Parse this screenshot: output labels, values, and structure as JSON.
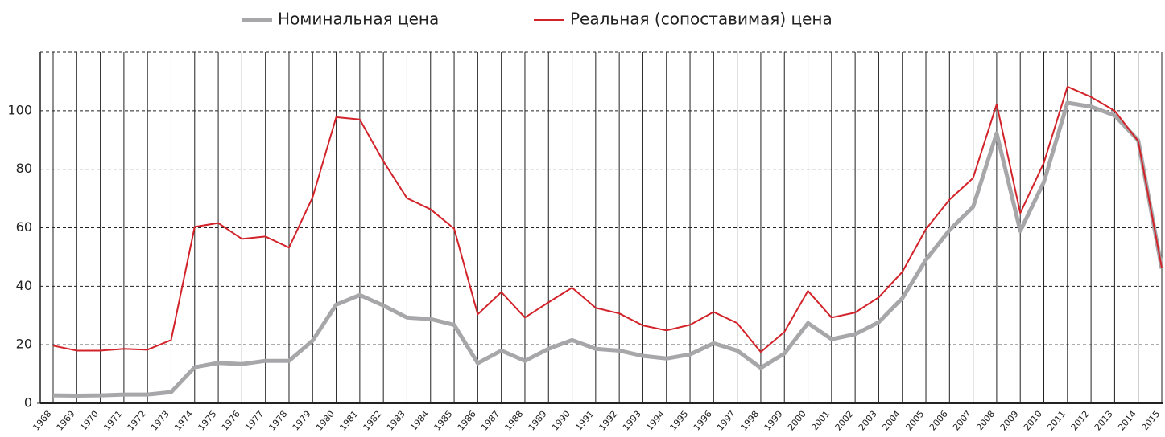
{
  "chart_data": {
    "type": "line",
    "categories": [
      "1968",
      "1969",
      "1970",
      "1971",
      "1972",
      "1973",
      "1974",
      "1975",
      "1976",
      "1977",
      "1978",
      "1979",
      "1980",
      "1981",
      "1982",
      "1983",
      "1984",
      "1985",
      "1986",
      "1987",
      "1988",
      "1989",
      "1990",
      "1991",
      "1992",
      "1993",
      "1994",
      "1995",
      "1996",
      "1997",
      "1998",
      "1999",
      "2000",
      "2001",
      "2002",
      "2003",
      "2004",
      "2005",
      "2006",
      "2007",
      "2008",
      "2009",
      "2010",
      "2011",
      "2012",
      "2013",
      "2014",
      "2015"
    ],
    "series": [
      {
        "name": "Номинальная цена",
        "color": "#a7a7aa",
        "values": [
          2.7,
          2.6,
          2.7,
          3,
          3,
          3.8,
          12.3,
          13.8,
          13.4,
          14.5,
          14.5,
          21.4,
          33.7,
          37,
          33.4,
          29.3,
          28.8,
          26.8,
          13.7,
          18,
          14.5,
          18.6,
          21.6,
          18.6,
          18,
          16.2,
          15.3,
          16.7,
          20.5,
          18,
          12.1,
          17,
          27.4,
          21.9,
          23.6,
          27.7,
          35.9,
          49,
          59.2,
          67.1,
          92.3,
          58.9,
          75.6,
          102.7,
          101.4,
          98.4,
          89.9,
          46
        ]
      },
      {
        "name": "Реальная (сопоставимая) цена",
        "color": "#d2232a",
        "values": [
          19.7,
          18,
          18,
          18.6,
          18.3,
          21.6,
          60.3,
          61.6,
          56.2,
          57,
          53.2,
          70.4,
          97.8,
          97,
          82.7,
          70.1,
          66.3,
          59.7,
          30.4,
          38,
          29.3,
          34.5,
          39.5,
          32.6,
          30.7,
          26.6,
          24.9,
          26.8,
          31.2,
          27.4,
          17.5,
          24.4,
          38.4,
          29.3,
          31,
          36.2,
          44.9,
          59.5,
          69.6,
          77,
          102.2,
          65,
          82.2,
          108.2,
          104.7,
          100,
          89.6,
          46.3
        ]
      }
    ],
    "ylim": [
      0,
      120
    ],
    "yticks": [
      0,
      20,
      40,
      60,
      80,
      100
    ],
    "grid": true
  }
}
